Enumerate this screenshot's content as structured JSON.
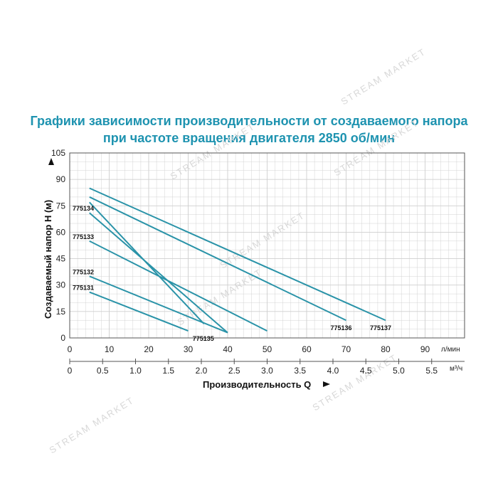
{
  "title": {
    "line1": "Графики зависимости производительности от создаваемого напора",
    "line2": "при частоте вращения двигателя 2850 об/мин"
  },
  "watermark": "STREAM MARKET",
  "colors": {
    "series": "#2a93a8",
    "title": "#1e93b0",
    "grid": "#cfcfcf"
  },
  "chart_data": {
    "type": "line",
    "ylabel": "Создаваемый напор Н (м)",
    "xlabel": "Производительность Q",
    "ylim": [
      0,
      105
    ],
    "xlim": [
      0,
      100
    ],
    "yticks": [
      0,
      15,
      30,
      45,
      60,
      75,
      90,
      105
    ],
    "xticks_lmin": [
      0,
      10,
      20,
      30,
      40,
      50,
      60,
      70,
      80,
      90
    ],
    "xunit_lmin": "л/мин",
    "xticks_m3h": [
      "0",
      "0.5",
      "1.0",
      "1.5",
      "2.0",
      "2.5",
      "3.0",
      "3.5",
      "4.0",
      "4.5",
      "5.0",
      "5.5"
    ],
    "xunit_m3h": "м³/ч",
    "grid": true,
    "series": [
      {
        "name": "775131",
        "x": [
          5,
          30
        ],
        "y": [
          26,
          4
        ]
      },
      {
        "name": "775132",
        "x": [
          5,
          40
        ],
        "y": [
          35,
          3
        ]
      },
      {
        "name": "775133",
        "x": [
          5,
          50
        ],
        "y": [
          55,
          4
        ]
      },
      {
        "name": "775134",
        "x": [
          5,
          40
        ],
        "y": [
          71,
          3
        ]
      },
      {
        "name": "775135",
        "x": [
          5,
          34
        ],
        "y": [
          77,
          8
        ]
      },
      {
        "name": "775136",
        "x": [
          5,
          70
        ],
        "y": [
          80,
          10
        ]
      },
      {
        "name": "775137",
        "x": [
          5,
          80
        ],
        "y": [
          85,
          10
        ]
      }
    ]
  }
}
